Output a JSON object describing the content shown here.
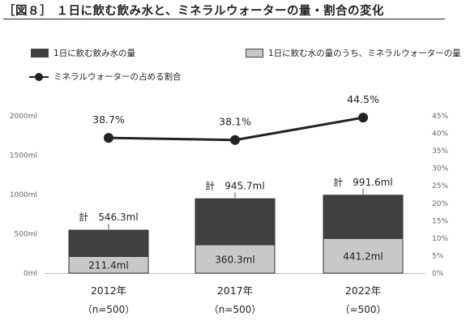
{
  "title": "［図８］ １日に飲む飲み水と、ミネラルウォーターの量・割合の変化",
  "legend": {
    "total": "1日に飲む飲み水の量",
    "mineral": "1日に飲む水の量のうち、ミネラルウォーターの量",
    "share": "ミネラルウォーターの占める割合"
  },
  "colors": {
    "total": "#404040",
    "mineral": "#c8c8c8",
    "line": "#222222"
  },
  "chart_data": {
    "type": "bar",
    "categories": [
      "2012年",
      "2017年",
      "2022年"
    ],
    "category_sublabels": [
      "（n=500）",
      "（n=500）",
      "（=500）"
    ],
    "series": [
      {
        "name": "1日に飲む飲み水の量",
        "values": [
          546.3,
          945.7,
          991.6
        ],
        "stack_total": true
      },
      {
        "name": "1日に飲む水の量のうち、ミネラルウォーターの量",
        "values": [
          211.4,
          360.3,
          441.2
        ]
      },
      {
        "name": "ミネラルウォーターの占める割合",
        "type": "line",
        "axis": "right",
        "values": [
          38.7,
          38.1,
          44.5
        ]
      }
    ],
    "mineral_labels": [
      "211.4ml",
      "360.3ml",
      "441.2ml"
    ],
    "total_labels": [
      "計　546.3ml",
      "計　945.7ml",
      "計　991.6ml"
    ],
    "share_labels": [
      "38.7%",
      "38.1%",
      "44.5%"
    ],
    "y_left": {
      "ticks": [
        "0ml",
        "500ml",
        "1000ml",
        "1500ml",
        "2000ml"
      ],
      "range": [
        0,
        2000
      ],
      "step": 500
    },
    "y_right": {
      "ticks": [
        "0%",
        "5%",
        "10%",
        "15%",
        "20%",
        "25%",
        "30%",
        "35%",
        "40%",
        "45%"
      ],
      "range": [
        0,
        45
      ],
      "step": 5
    },
    "grid": false
  }
}
